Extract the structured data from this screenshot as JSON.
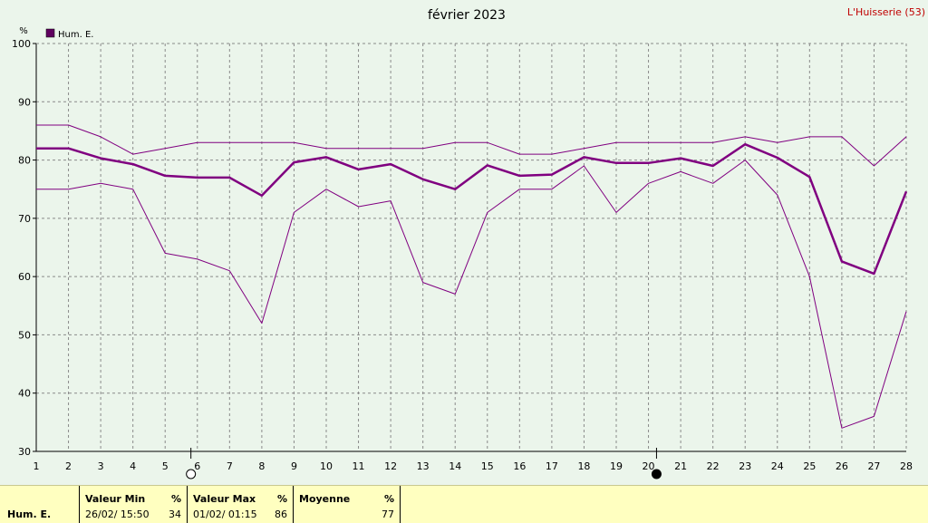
{
  "title": "février 2023",
  "station": "L'Huisserie (53)",
  "unit": "%",
  "legend_label": "Hum. E.",
  "colors": {
    "series": "#800080",
    "legend_box": "#600060",
    "background": "#ebf5eb",
    "stats_bg": "#ffffc0",
    "station": "#c00000"
  },
  "moon_icons": [
    "full-moon-icon",
    "new-moon-icon"
  ],
  "chart_data": {
    "type": "line",
    "title": "février 2023",
    "ylabel": "%",
    "xlabel": "",
    "ylim": [
      30,
      100
    ],
    "yticks": [
      30,
      40,
      50,
      60,
      70,
      80,
      90,
      100
    ],
    "x": [
      1,
      2,
      3,
      4,
      5,
      6,
      7,
      8,
      9,
      10,
      11,
      12,
      13,
      14,
      15,
      16,
      17,
      18,
      19,
      20,
      21,
      22,
      23,
      24,
      25,
      26,
      27,
      28
    ],
    "grid": true,
    "legend": "top-left",
    "series": [
      {
        "name": "Hum. E.",
        "role": "max",
        "values": [
          86,
          86,
          84,
          81,
          82,
          83,
          83,
          83,
          83,
          82,
          82,
          82,
          82,
          83,
          83,
          81,
          81,
          82,
          83,
          83,
          83,
          83,
          84,
          83,
          84,
          84,
          79,
          84
        ]
      },
      {
        "name": "Hum. E.",
        "role": "mean",
        "values": [
          82,
          82,
          80.3,
          79.3,
          77.3,
          77,
          77,
          73.9,
          79.6,
          80.5,
          78.4,
          79.3,
          76.7,
          75,
          79.1,
          77.3,
          77.5,
          80.5,
          79.5,
          79.5,
          80.3,
          79,
          82.7,
          80.4,
          77.1,
          62.6,
          60.5,
          74.6
        ]
      },
      {
        "name": "Hum. E.",
        "role": "min",
        "values": [
          75,
          75,
          76,
          75,
          64,
          63,
          61,
          52,
          71,
          75,
          72,
          73,
          59,
          57,
          71,
          75,
          75,
          79,
          71,
          76,
          78,
          76,
          80,
          74,
          60,
          34,
          36,
          54
        ]
      }
    ]
  },
  "stats": {
    "row_label": "Hum. E.",
    "min_header": "Valeur Min",
    "min_unit": "%",
    "min_time": "26/02/  15:50",
    "min_value": "34",
    "max_header": "Valeur Max",
    "max_unit": "%",
    "max_time": "01/02/  01:15",
    "max_value": "86",
    "avg_header": "Moyenne",
    "avg_unit": "%",
    "avg_value": "77"
  }
}
